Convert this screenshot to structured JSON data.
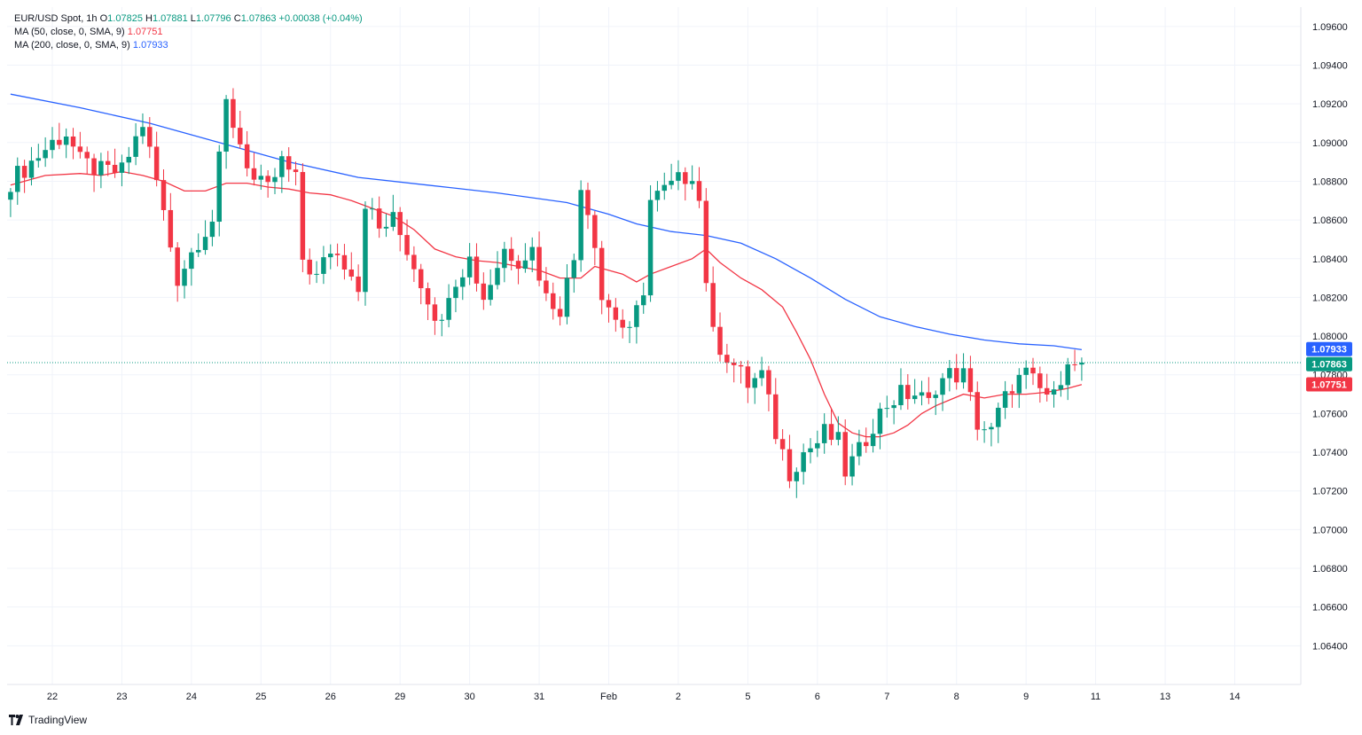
{
  "legend": {
    "symbol": "EUR/USD Spot, 1h",
    "o_label": "O",
    "o_value": "1.07825",
    "h_label": "H",
    "h_value": "1.07881",
    "l_label": "L",
    "l_value": "1.07796",
    "c_label": "C",
    "c_value": "1.07863",
    "change": "+0.00038 (+0.04%)",
    "ma50_label": "MA (50, close, 0, SMA, 9)",
    "ma50_value": "1.07751",
    "ma200_label": "MA (200, close, 0, SMA, 9)",
    "ma200_value": "1.07933"
  },
  "branding": {
    "name": "TradingView"
  },
  "colors": {
    "up": "#089981",
    "down": "#f23645",
    "ma50": "#f23645",
    "ma200": "#2962ff",
    "grid": "#f0f3fa",
    "axis": "#131722"
  },
  "chart_data": {
    "type": "candlestick",
    "symbol": "EUR/USD Spot",
    "interval": "1h",
    "ylim": [
      1.062,
      1.097
    ],
    "y_ticks": [
      "1.09600",
      "1.09400",
      "1.09200",
      "1.09000",
      "1.08800",
      "1.08600",
      "1.08400",
      "1.08200",
      "1.08000",
      "1.07800",
      "1.07600",
      "1.07400",
      "1.07200",
      "1.07000",
      "1.06800",
      "1.06600",
      "1.06400"
    ],
    "x_ticks": [
      {
        "label": "22",
        "bar": 6
      },
      {
        "label": "23",
        "bar": 16
      },
      {
        "label": "24",
        "bar": 26
      },
      {
        "label": "25",
        "bar": 36
      },
      {
        "label": "26",
        "bar": 46
      },
      {
        "label": "29",
        "bar": 56
      },
      {
        "label": "30",
        "bar": 66
      },
      {
        "label": "31",
        "bar": 76
      },
      {
        "label": "Feb",
        "bar": 86
      },
      {
        "label": "2",
        "bar": 96
      },
      {
        "label": "5",
        "bar": 106
      },
      {
        "label": "6",
        "bar": 116
      },
      {
        "label": "7",
        "bar": 126
      },
      {
        "label": "8",
        "bar": 136
      },
      {
        "label": "9",
        "bar": 146
      },
      {
        "label": "11",
        "bar": 156
      },
      {
        "label": "13",
        "bar": 166
      },
      {
        "label": "14",
        "bar": 176
      }
    ],
    "total_bars": 186,
    "close_anchors": [
      [
        0,
        1.088
      ],
      [
        3,
        1.089
      ],
      [
        6,
        1.09
      ],
      [
        8,
        1.0905
      ],
      [
        10,
        1.089
      ],
      [
        13,
        1.0885
      ],
      [
        16,
        1.0885
      ],
      [
        19,
        1.091
      ],
      [
        21,
        1.088
      ],
      [
        24,
        1.083
      ],
      [
        27,
        1.085
      ],
      [
        29,
        1.086
      ],
      [
        31,
        1.092
      ],
      [
        33,
        1.09
      ],
      [
        35,
        1.088
      ],
      [
        37,
        1.0875
      ],
      [
        39,
        1.089
      ],
      [
        41,
        1.088
      ],
      [
        42,
        1.084
      ],
      [
        44,
        1.083
      ],
      [
        46,
        1.0845
      ],
      [
        49,
        1.0835
      ],
      [
        50,
        1.0825
      ],
      [
        51,
        1.087
      ],
      [
        53,
        1.0855
      ],
      [
        55,
        1.086
      ],
      [
        57,
        1.0845
      ],
      [
        60,
        1.082
      ],
      [
        62,
        1.0805
      ],
      [
        63,
        1.0825
      ],
      [
        66,
        1.084
      ],
      [
        68,
        1.082
      ],
      [
        71,
        1.0845
      ],
      [
        73,
        1.084
      ],
      [
        75,
        1.0845
      ],
      [
        77,
        1.082
      ],
      [
        79,
        1.0815
      ],
      [
        81,
        1.084
      ],
      [
        82,
        1.088
      ],
      [
        84,
        1.085
      ],
      [
        85,
        1.082
      ],
      [
        87,
        1.081
      ],
      [
        89,
        1.08
      ],
      [
        91,
        1.0825
      ],
      [
        92,
        1.087
      ],
      [
        94,
        1.0875
      ],
      [
        96,
        1.088
      ],
      [
        98,
        1.0885
      ],
      [
        99,
        1.087
      ],
      [
        100,
        1.083
      ],
      [
        101,
        1.08
      ],
      [
        103,
        1.079
      ],
      [
        106,
        1.0775
      ],
      [
        108,
        1.078
      ],
      [
        110,
        1.075
      ],
      [
        112,
        1.073
      ],
      [
        114,
        1.074
      ],
      [
        116,
        1.0745
      ],
      [
        117,
        1.075
      ],
      [
        119,
        1.0745
      ],
      [
        120,
        1.073
      ],
      [
        122,
        1.074
      ],
      [
        124,
        1.0755
      ],
      [
        126,
        1.0765
      ],
      [
        128,
        1.077
      ],
      [
        130,
        1.077
      ],
      [
        132,
        1.0765
      ],
      [
        133,
        1.0775
      ],
      [
        135,
        1.078
      ],
      [
        137,
        1.078
      ],
      [
        139,
        1.0755
      ],
      [
        141,
        1.075
      ],
      [
        142,
        1.076
      ],
      [
        144,
        1.0775
      ],
      [
        146,
        1.078
      ],
      [
        148,
        1.0772
      ],
      [
        150,
        1.0768
      ],
      [
        151,
        1.078
      ],
      [
        152,
        1.079
      ],
      [
        153,
        1.0783
      ],
      [
        154,
        1.0786
      ]
    ],
    "series": [
      {
        "name": "MA (50, close, 0, SMA, 9)",
        "type": "line",
        "points": [
          [
            0,
            1.0878
          ],
          [
            5,
            1.0883
          ],
          [
            10,
            1.0884
          ],
          [
            13,
            1.0883
          ],
          [
            16,
            1.0885
          ],
          [
            19,
            1.0883
          ],
          [
            22,
            1.088
          ],
          [
            25,
            1.0875
          ],
          [
            28,
            1.0875
          ],
          [
            31,
            1.0879
          ],
          [
            34,
            1.0879
          ],
          [
            37,
            1.0877
          ],
          [
            40,
            1.0876
          ],
          [
            43,
            1.0874
          ],
          [
            46,
            1.0873
          ],
          [
            49,
            1.087
          ],
          [
            52,
            1.0866
          ],
          [
            55,
            1.0862
          ],
          [
            58,
            1.0855
          ],
          [
            61,
            1.0845
          ],
          [
            64,
            1.0841
          ],
          [
            67,
            1.0839
          ],
          [
            70,
            1.0838
          ],
          [
            73,
            1.0836
          ],
          [
            76,
            1.0834
          ],
          [
            79,
            1.083
          ],
          [
            82,
            1.083
          ],
          [
            84,
            1.0836
          ],
          [
            86,
            1.0834
          ],
          [
            88,
            1.0832
          ],
          [
            90,
            1.0828
          ],
          [
            92,
            1.0832
          ],
          [
            95,
            1.0836
          ],
          [
            98,
            1.084
          ],
          [
            100,
            1.0845
          ],
          [
            102,
            1.0838
          ],
          [
            105,
            1.083
          ],
          [
            108,
            1.0824
          ],
          [
            111,
            1.0815
          ],
          [
            113,
            1.0802
          ],
          [
            115,
            1.0788
          ],
          [
            117,
            1.077
          ],
          [
            119,
            1.0755
          ],
          [
            121,
            1.075
          ],
          [
            123,
            1.0748
          ],
          [
            125,
            1.0748
          ],
          [
            127,
            1.075
          ],
          [
            129,
            1.0754
          ],
          [
            131,
            1.076
          ],
          [
            133,
            1.0764
          ],
          [
            135,
            1.0767
          ],
          [
            137,
            1.077
          ],
          [
            140,
            1.0768
          ],
          [
            143,
            1.077
          ],
          [
            146,
            1.077
          ],
          [
            149,
            1.0771
          ],
          [
            152,
            1.0773
          ],
          [
            154,
            1.0775
          ]
        ]
      },
      {
        "name": "MA (200, close, 0, SMA, 9)",
        "type": "line",
        "points": [
          [
            0,
            1.0925
          ],
          [
            10,
            1.0918
          ],
          [
            20,
            1.091
          ],
          [
            30,
            1.09
          ],
          [
            40,
            1.089
          ],
          [
            50,
            1.0882
          ],
          [
            60,
            1.0878
          ],
          [
            70,
            1.0874
          ],
          [
            80,
            1.0869
          ],
          [
            86,
            1.0863
          ],
          [
            90,
            1.0858
          ],
          [
            95,
            1.0854
          ],
          [
            100,
            1.0852
          ],
          [
            105,
            1.0848
          ],
          [
            110,
            1.084
          ],
          [
            115,
            1.083
          ],
          [
            120,
            1.0819
          ],
          [
            125,
            1.081
          ],
          [
            130,
            1.0805
          ],
          [
            135,
            1.0801
          ],
          [
            140,
            1.0798
          ],
          [
            145,
            1.0796
          ],
          [
            150,
            1.0795
          ],
          [
            154,
            1.0793
          ]
        ]
      }
    ],
    "last_close": 1.07863,
    "price_tags": [
      {
        "label": "1.07933",
        "value": 1.07933,
        "color": "#2962ff"
      },
      {
        "label": "1.07863",
        "value": 1.07863,
        "color": "#089981"
      },
      {
        "label": "1.07751",
        "value": 1.07751,
        "color": "#f23645"
      }
    ]
  }
}
